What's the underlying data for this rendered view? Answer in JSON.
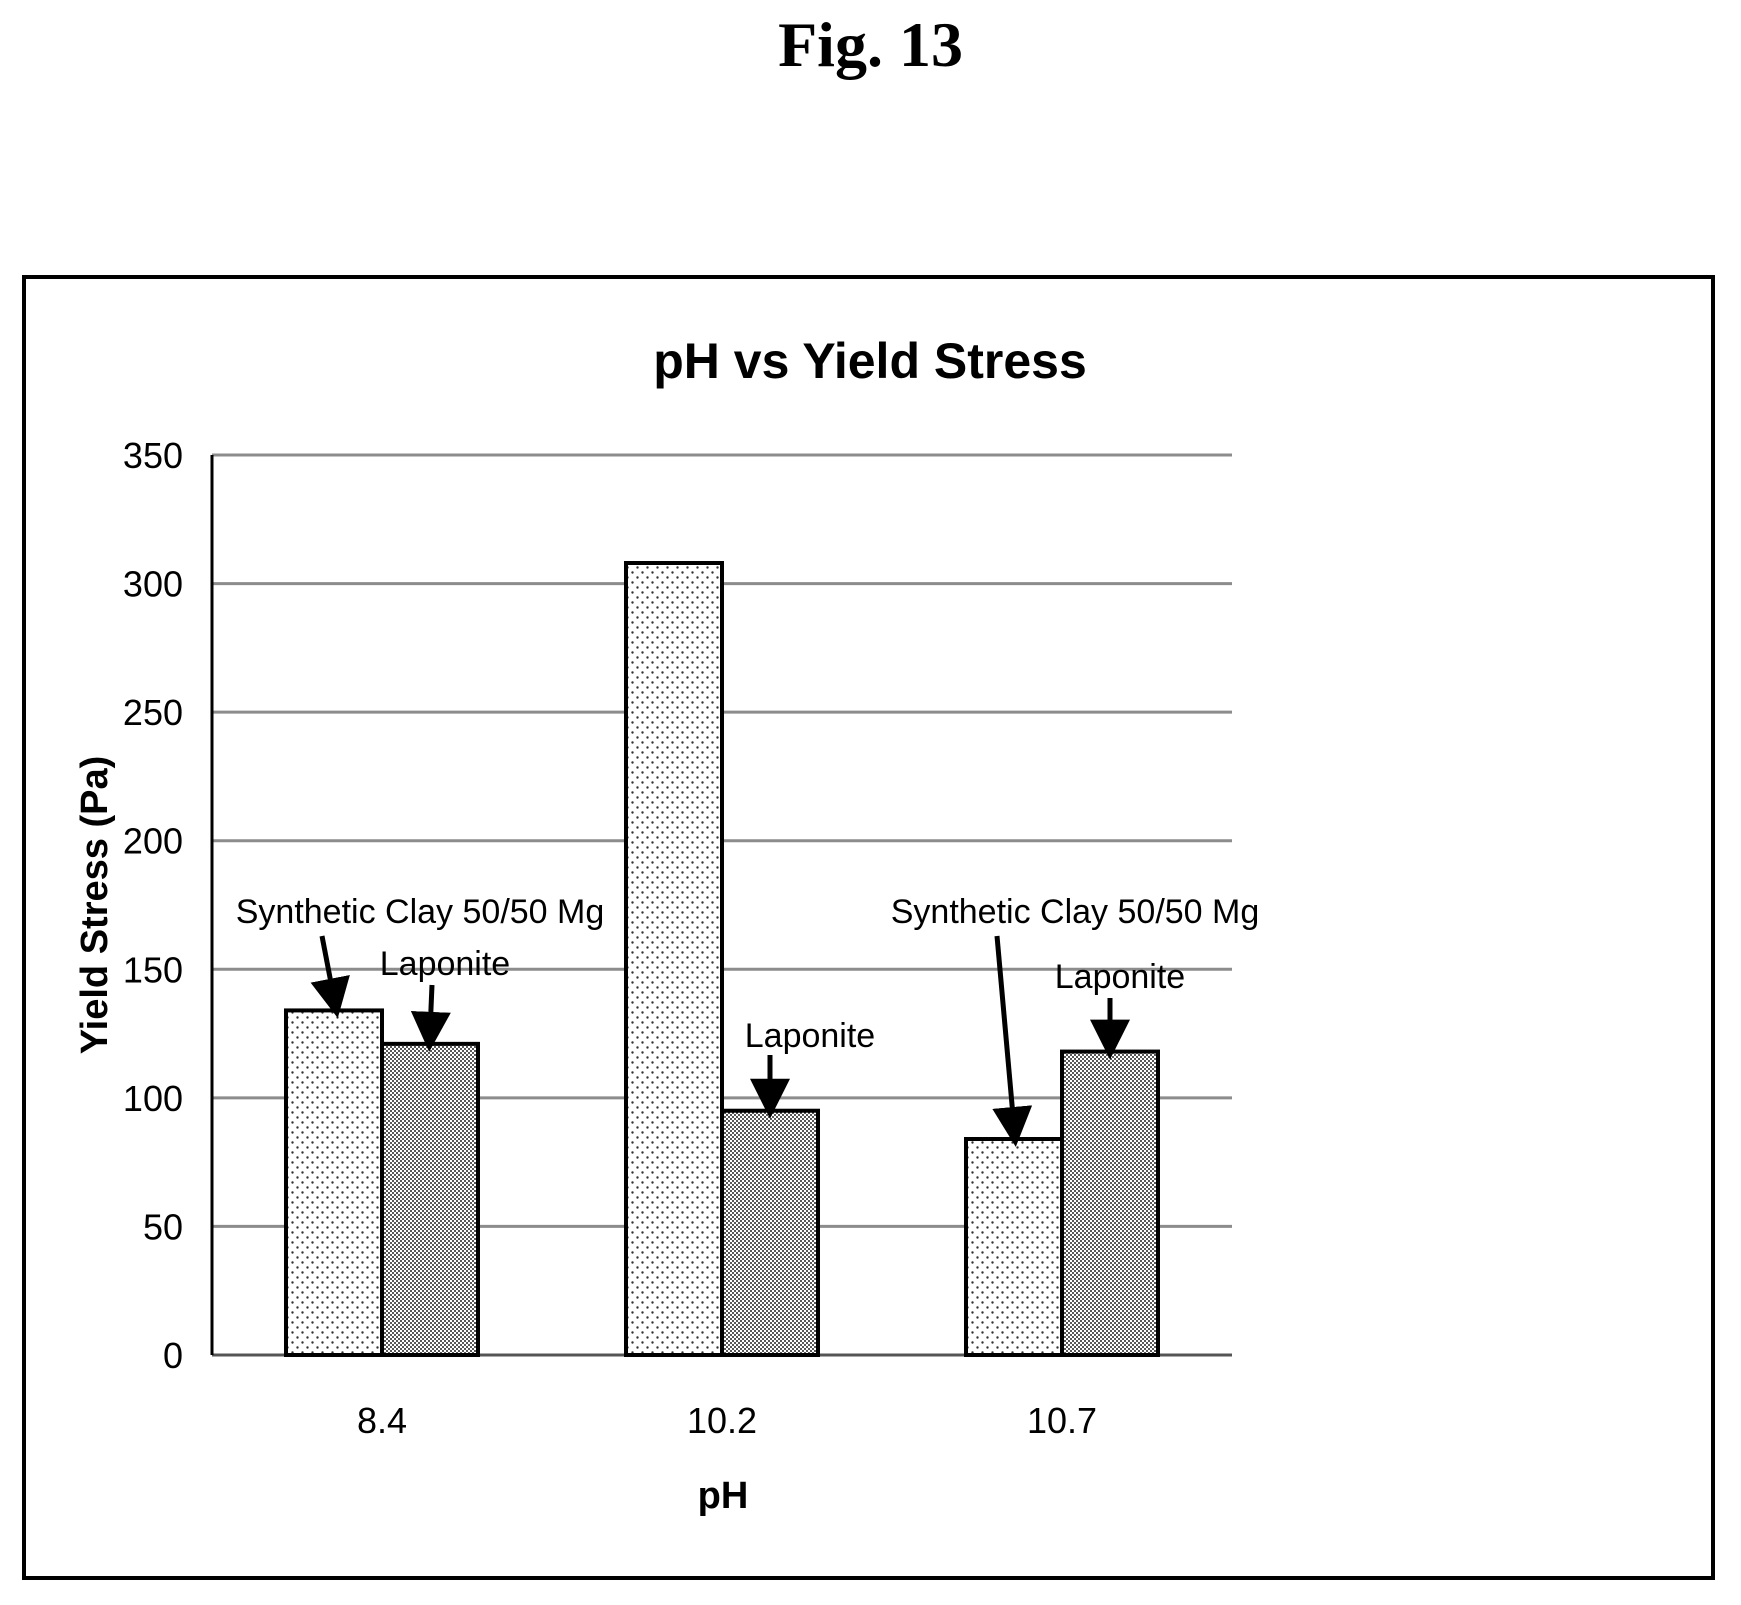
{
  "figure": {
    "label": "Fig. 13"
  },
  "chart_data": {
    "type": "bar",
    "title": "pH vs Yield Stress",
    "xlabel": "pH",
    "ylabel": "Yield Stress (Pa)",
    "categories": [
      "8.4",
      "10.2",
      "10.7"
    ],
    "ylim": [
      0,
      350
    ],
    "yticks": [
      0,
      50,
      100,
      150,
      200,
      250,
      300,
      350
    ],
    "grid": true,
    "series": [
      {
        "values": [
          134,
          308,
          84
        ],
        "pattern": "sparse-dots"
      },
      {
        "values": [
          121,
          95,
          118
        ],
        "pattern": "dense-dots"
      }
    ],
    "annotations": [
      {
        "text": "Synthetic Clay 50/50 Mg",
        "category": 0,
        "series": 0
      },
      {
        "text": "Laponite",
        "category": 0,
        "series": 1
      },
      {
        "text": "Laponite",
        "category": 1,
        "series": 1
      },
      {
        "text": "Synthetic Clay 50/50 Mg",
        "category": 2,
        "series": 0
      },
      {
        "text": "Laponite",
        "category": 2,
        "series": 1
      }
    ],
    "colors": {
      "axis": "#000000",
      "grid": "#8c8c8c",
      "bar_edge": "#000000"
    }
  }
}
